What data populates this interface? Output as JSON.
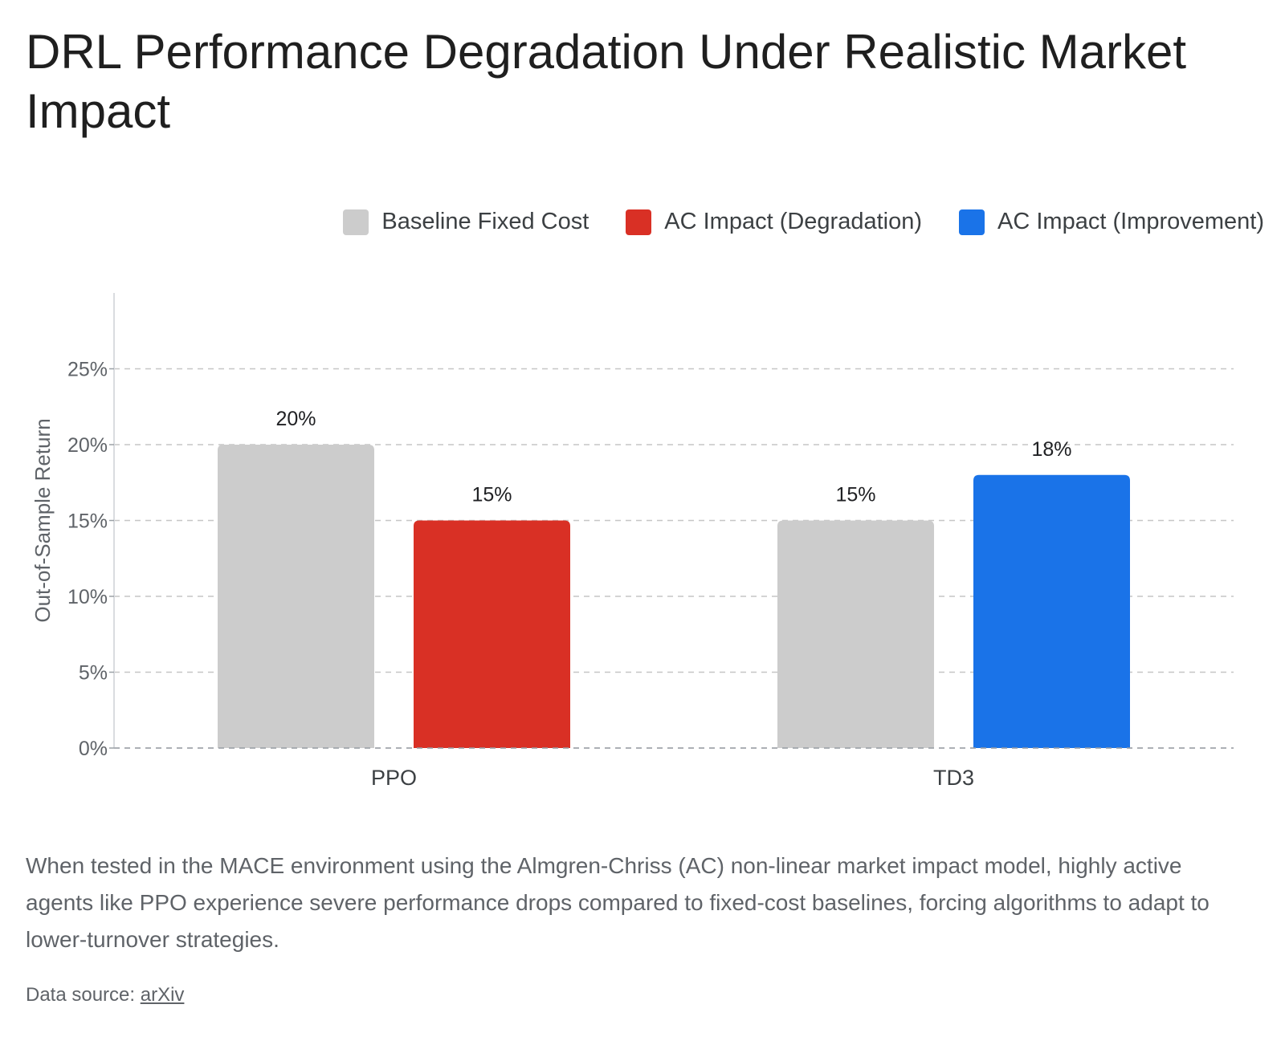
{
  "title": "DRL Performance Degradation Under Realistic Market Impact",
  "legend": [
    {
      "label": "Baseline Fixed Cost",
      "color": "#cccccc"
    },
    {
      "label": "AC Impact (Degradation)",
      "color": "#d93025"
    },
    {
      "label": "AC Impact (Improvement)",
      "color": "#1a73e8"
    }
  ],
  "caption": "When tested in the MACE environment using the Almgren-Chriss (AC) non-linear market impact model, highly active agents like PPO experience severe performance drops compared to fixed-cost baselines, forcing algorithms to adapt to lower-turnover strategies.",
  "source": {
    "prefix": "Data source: ",
    "link_text": "arXiv"
  },
  "chart_data": {
    "type": "bar",
    "title": "DRL Performance Degradation Under Realistic Market Impact",
    "xlabel": "",
    "ylabel": "Out-of-Sample Return",
    "categories": [
      "PPO",
      "TD3"
    ],
    "ylim": [
      0,
      30
    ],
    "yticks": [
      0,
      5,
      10,
      15,
      20,
      25
    ],
    "ytick_labels": [
      "0%",
      "5%",
      "10%",
      "15%",
      "20%",
      "25%"
    ],
    "grid": true,
    "legend_position": "top-right",
    "bars": [
      {
        "category": "PPO",
        "series": "Baseline Fixed Cost",
        "value": 20,
        "label": "20%",
        "color": "#cccccc"
      },
      {
        "category": "PPO",
        "series": "AC Impact (Degradation)",
        "value": 15,
        "label": "15%",
        "color": "#d93025"
      },
      {
        "category": "TD3",
        "series": "Baseline Fixed Cost",
        "value": 15,
        "label": "15%",
        "color": "#cccccc"
      },
      {
        "category": "TD3",
        "series": "AC Impact (Improvement)",
        "value": 18,
        "label": "18%",
        "color": "#1a73e8"
      }
    ]
  }
}
